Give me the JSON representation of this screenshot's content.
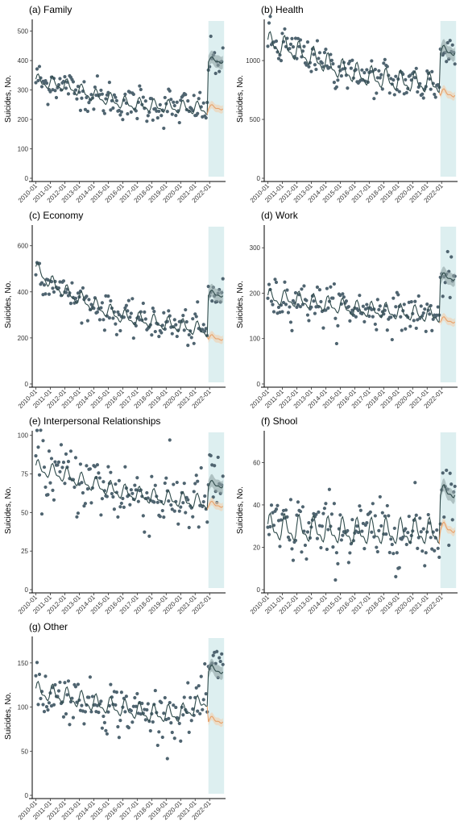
{
  "colors": {
    "point": "#4f6470",
    "observed_line": "#2f4b4b",
    "counterfactual_line": "#e8a26a",
    "counterfactual_band": "#f3cfae",
    "fitted_band": "#8fa1a4",
    "shade": "#cfe8ea"
  },
  "chart_data": [
    {
      "type": "scatter",
      "title": "(a) Family",
      "ylabel": "Suicides, No.",
      "ylim": [
        0,
        540
      ],
      "yticks": [
        0,
        100,
        200,
        300,
        400,
        500
      ],
      "xticks": [
        "2010-01",
        "2011-01",
        "2012-01",
        "2013-01",
        "2014-01",
        "2015-01",
        "2016-01",
        "2017-01",
        "2018-01",
        "2019-01",
        "2020-01",
        "2021-01",
        "2022-01"
      ],
      "grid": false,
      "shaded_range": [
        "2021-12",
        "2022-12"
      ],
      "trend_points": [
        [
          2010.0,
          330
        ],
        [
          2012.0,
          315
        ],
        [
          2014.0,
          280
        ],
        [
          2016.0,
          255
        ],
        [
          2018.0,
          245
        ],
        [
          2020.0,
          240
        ],
        [
          2021.9,
          235
        ]
      ],
      "post_observed_level": 400,
      "post_counterfactual_level": 240,
      "obs_noise": 30,
      "seasonal_amp": 18
    },
    {
      "type": "scatter",
      "title": "(b) Health",
      "ylabel": "Suicides, No.",
      "ylim": [
        0,
        1350
      ],
      "yticks": [
        0,
        500,
        1000
      ],
      "xticks": [
        "2010-01",
        "2011-01",
        "2012-01",
        "2013-01",
        "2014-01",
        "2015-01",
        "2016-01",
        "2017-01",
        "2018-01",
        "2019-01",
        "2020-01",
        "2021-01",
        "2022-01"
      ],
      "grid": false,
      "shaded_range": [
        "2021-12",
        "2022-12"
      ],
      "trend_points": [
        [
          2010.0,
          1150
        ],
        [
          2011.0,
          1120
        ],
        [
          2013.0,
          1030
        ],
        [
          2015.0,
          920
        ],
        [
          2017.0,
          860
        ],
        [
          2019.0,
          820
        ],
        [
          2021.9,
          800
        ]
      ],
      "post_observed_level": 1080,
      "post_counterfactual_level": 720,
      "obs_noise": 80,
      "seasonal_amp": 70
    },
    {
      "type": "scatter",
      "title": "(c) Economy",
      "ylabel": "Suicides, No.",
      "ylim": [
        0,
        690
      ],
      "yticks": [
        0,
        200,
        400,
        600
      ],
      "xticks": [
        "2010-01",
        "2011-01",
        "2012-01",
        "2013-01",
        "2014-01",
        "2015-01",
        "2016-01",
        "2017-01",
        "2018-01",
        "2019-01",
        "2020-01",
        "2021-01",
        "2022-01"
      ],
      "grid": false,
      "shaded_range": [
        "2021-12",
        "2022-12"
      ],
      "trend_points": [
        [
          2010.0,
          500
        ],
        [
          2011.0,
          440
        ],
        [
          2012.0,
          400
        ],
        [
          2014.0,
          340
        ],
        [
          2016.0,
          290
        ],
        [
          2018.0,
          270
        ],
        [
          2020.0,
          250
        ],
        [
          2021.9,
          230
        ]
      ],
      "post_observed_level": 390,
      "post_counterfactual_level": 200,
      "obs_noise": 35,
      "seasonal_amp": 25
    },
    {
      "type": "scatter",
      "title": "(d) Work",
      "ylabel": "Suicides, No.",
      "ylim": [
        0,
        350
      ],
      "yticks": [
        0,
        100,
        200,
        300
      ],
      "xticks": [
        "2010-01",
        "2011-01",
        "2012-01",
        "2013-01",
        "2014-01",
        "2015-01",
        "2016-01",
        "2017-01",
        "2018-01",
        "2019-01",
        "2020-01",
        "2021-01",
        "2022-01"
      ],
      "grid": false,
      "shaded_range": [
        "2021-12",
        "2022-12"
      ],
      "trend_points": [
        [
          2010.0,
          190
        ],
        [
          2012.0,
          185
        ],
        [
          2014.0,
          175
        ],
        [
          2016.0,
          165
        ],
        [
          2018.0,
          160
        ],
        [
          2020.0,
          155
        ],
        [
          2021.9,
          150
        ]
      ],
      "post_observed_level": 235,
      "post_counterfactual_level": 140,
      "obs_noise": 22,
      "seasonal_amp": 14
    },
    {
      "type": "scatter",
      "title": "(e) Interpersonal Relationships",
      "ylabel": "Suicides, No.",
      "ylim": [
        0,
        103
      ],
      "yticks": [
        0,
        25,
        50,
        75,
        100
      ],
      "xticks": [
        "2010-01",
        "2011-01",
        "2012-01",
        "2013-01",
        "2014-01",
        "2015-01",
        "2016-01",
        "2017-01",
        "2018-01",
        "2019-01",
        "2020-01",
        "2021-01",
        "2022-01"
      ],
      "grid": false,
      "shaded_range": [
        "2021-12",
        "2022-12"
      ],
      "trend_points": [
        [
          2010.0,
          79
        ],
        [
          2012.0,
          74
        ],
        [
          2014.0,
          68
        ],
        [
          2016.0,
          63
        ],
        [
          2018.0,
          60
        ],
        [
          2020.0,
          58
        ],
        [
          2021.9,
          56
        ]
      ],
      "post_observed_level": 68,
      "post_counterfactual_level": 55,
      "obs_noise": 11,
      "seasonal_amp": 4
    },
    {
      "type": "scatter",
      "title": "(f) Shool",
      "ylabel": "Suicides, No.",
      "ylim": [
        0,
        75
      ],
      "yticks": [
        0,
        20,
        40,
        60
      ],
      "xticks": [
        "2010-01",
        "2011-01",
        "2012-01",
        "2013-01",
        "2014-01",
        "2015-01",
        "2016-01",
        "2017-01",
        "2018-01",
        "2019-01",
        "2020-01",
        "2021-01",
        "2022-01"
      ],
      "grid": false,
      "shaded_range": [
        "2021-12",
        "2022-12"
      ],
      "trend_points": [
        [
          2010.0,
          29
        ],
        [
          2013.0,
          28
        ],
        [
          2016.0,
          27
        ],
        [
          2019.0,
          27
        ],
        [
          2021.9,
          27
        ]
      ],
      "post_observed_level": 46,
      "post_counterfactual_level": 29,
      "obs_noise": 8,
      "seasonal_amp": 5
    },
    {
      "type": "scatter",
      "title": "(g) Other",
      "ylabel": "Suicides, No.",
      "ylim": [
        0,
        180
      ],
      "yticks": [
        0,
        50,
        100,
        150
      ],
      "xticks": [
        "2010-01",
        "2011-01",
        "2012-01",
        "2013-01",
        "2014-01",
        "2015-01",
        "2016-01",
        "2017-01",
        "2018-01",
        "2019-01",
        "2020-01",
        "2021-01",
        "2022-01"
      ],
      "grid": false,
      "shaded_range": [
        "2021-12",
        "2022-12"
      ],
      "trend_points": [
        [
          2010.0,
          118
        ],
        [
          2012.0,
          112
        ],
        [
          2014.0,
          104
        ],
        [
          2016.0,
          98
        ],
        [
          2018.0,
          92
        ],
        [
          2020.0,
          92
        ],
        [
          2021.0,
          100
        ],
        [
          2021.9,
          110
        ]
      ],
      "post_observed_level": 142,
      "post_counterfactual_level": 85,
      "obs_noise": 14,
      "seasonal_amp": 8
    }
  ]
}
